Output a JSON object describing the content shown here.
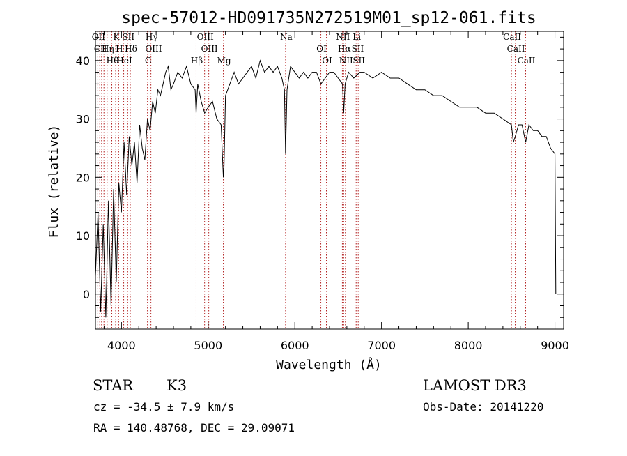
{
  "chart_data": {
    "type": "line",
    "title": "spec-57012-HD091735N272519M01_sp12-061.fits",
    "xlabel": "Wavelength (Å)",
    "ylabel": "Flux (relative)",
    "xlim": [
      3700,
      9100
    ],
    "ylim": [
      -6,
      45
    ],
    "xticks": [
      4000,
      5000,
      6000,
      7000,
      8000,
      9000
    ],
    "yticks": [
      0,
      10,
      20,
      30,
      40
    ],
    "series": [
      {
        "name": "flux",
        "x": [
          3700,
          3730,
          3760,
          3790,
          3820,
          3850,
          3880,
          3910,
          3940,
          3970,
          4000,
          4030,
          4060,
          4090,
          4120,
          4150,
          4180,
          4210,
          4240,
          4270,
          4300,
          4330,
          4360,
          4390,
          4420,
          4450,
          4480,
          4510,
          4540,
          4570,
          4600,
          4650,
          4700,
          4750,
          4800,
          4850,
          4861,
          4880,
          4920,
          4960,
          5000,
          5050,
          5100,
          5150,
          5175,
          5183,
          5200,
          5250,
          5300,
          5350,
          5400,
          5450,
          5500,
          5550,
          5600,
          5650,
          5700,
          5750,
          5800,
          5850,
          5880,
          5893,
          5910,
          5950,
          6000,
          6050,
          6100,
          6150,
          6200,
          6250,
          6300,
          6350,
          6400,
          6450,
          6500,
          6550,
          6563,
          6580,
          6620,
          6680,
          6750,
          6800,
          6900,
          7000,
          7100,
          7200,
          7300,
          7400,
          7500,
          7600,
          7700,
          7800,
          7900,
          8000,
          8100,
          8200,
          8300,
          8400,
          8498,
          8520,
          8542,
          8580,
          8620,
          8662,
          8700,
          8750,
          8800,
          8850,
          8900,
          8950,
          9000,
          9010
        ],
        "y": [
          3,
          14,
          -3,
          12,
          -4,
          16,
          -2,
          18,
          2,
          19,
          14,
          26,
          17,
          27,
          22,
          26,
          19,
          29,
          25,
          23,
          30,
          28,
          33,
          31,
          35,
          34,
          36,
          38,
          39,
          35,
          36,
          38,
          37,
          39,
          36,
          35,
          31,
          36,
          33,
          31,
          32,
          33,
          30,
          29,
          20,
          22,
          34,
          36,
          38,
          36,
          37,
          38,
          39,
          37,
          40,
          38,
          39,
          38,
          39,
          37,
          35,
          24,
          35,
          39,
          38,
          37,
          38,
          37,
          38,
          38,
          36,
          37,
          38,
          38,
          37,
          36,
          31,
          36,
          38,
          37,
          38,
          38,
          37,
          38,
          37,
          37,
          36,
          35,
          35,
          34,
          34,
          33,
          32,
          32,
          32,
          31,
          31,
          30,
          29,
          26,
          27,
          29,
          29,
          26,
          29,
          28,
          28,
          27,
          27,
          25,
          24,
          0
        ]
      }
    ],
    "line_markers": [
      {
        "w": 3727,
        "label": "OII"
      },
      {
        "w": 3750,
        "label": "CII"
      },
      {
        "w": 3771,
        "label": ""
      },
      {
        "w": 3798,
        "label": ""
      },
      {
        "w": 3835,
        "label": "Hη"
      },
      {
        "w": 3889,
        "label": "Hθ"
      },
      {
        "w": 3933,
        "label": "K"
      },
      {
        "w": 3968,
        "label": "H"
      },
      {
        "w": 4026,
        "label": "HeI"
      },
      {
        "w": 4072,
        "label": "SII"
      },
      {
        "w": 4102,
        "label": "Hδ"
      },
      {
        "w": 4300,
        "label": "G"
      },
      {
        "w": 4340,
        "label": "Hγ"
      },
      {
        "w": 4363,
        "label": "OIII"
      },
      {
        "w": 4861,
        "label": "Hβ"
      },
      {
        "w": 4959,
        "label": "OIII"
      },
      {
        "w": 5007,
        "label": "OIII"
      },
      {
        "w": 5175,
        "label": "Mg"
      },
      {
        "w": 5893,
        "label": "Na"
      },
      {
        "w": 6300,
        "label": "OI"
      },
      {
        "w": 6364,
        "label": "OI"
      },
      {
        "w": 6548,
        "label": "NII"
      },
      {
        "w": 6563,
        "label": "Hα"
      },
      {
        "w": 6583,
        "label": "NII"
      },
      {
        "w": 6707,
        "label": "Li"
      },
      {
        "w": 6717,
        "label": "SII"
      },
      {
        "w": 6731,
        "label": "SII"
      },
      {
        "w": 8498,
        "label": "CaII"
      },
      {
        "w": 8542,
        "label": "CaII"
      },
      {
        "w": 8662,
        "label": "CaII"
      }
    ],
    "marker_color": "#b22222"
  },
  "info": {
    "class": "STAR",
    "subclass": "K3",
    "survey": "LAMOST DR3",
    "redshift": "cz = -34.5 ± 7.9 km/s",
    "obs_date": "Obs-Date: 20141220",
    "coords": "RA = 140.48768, DEC =  29.09071"
  }
}
